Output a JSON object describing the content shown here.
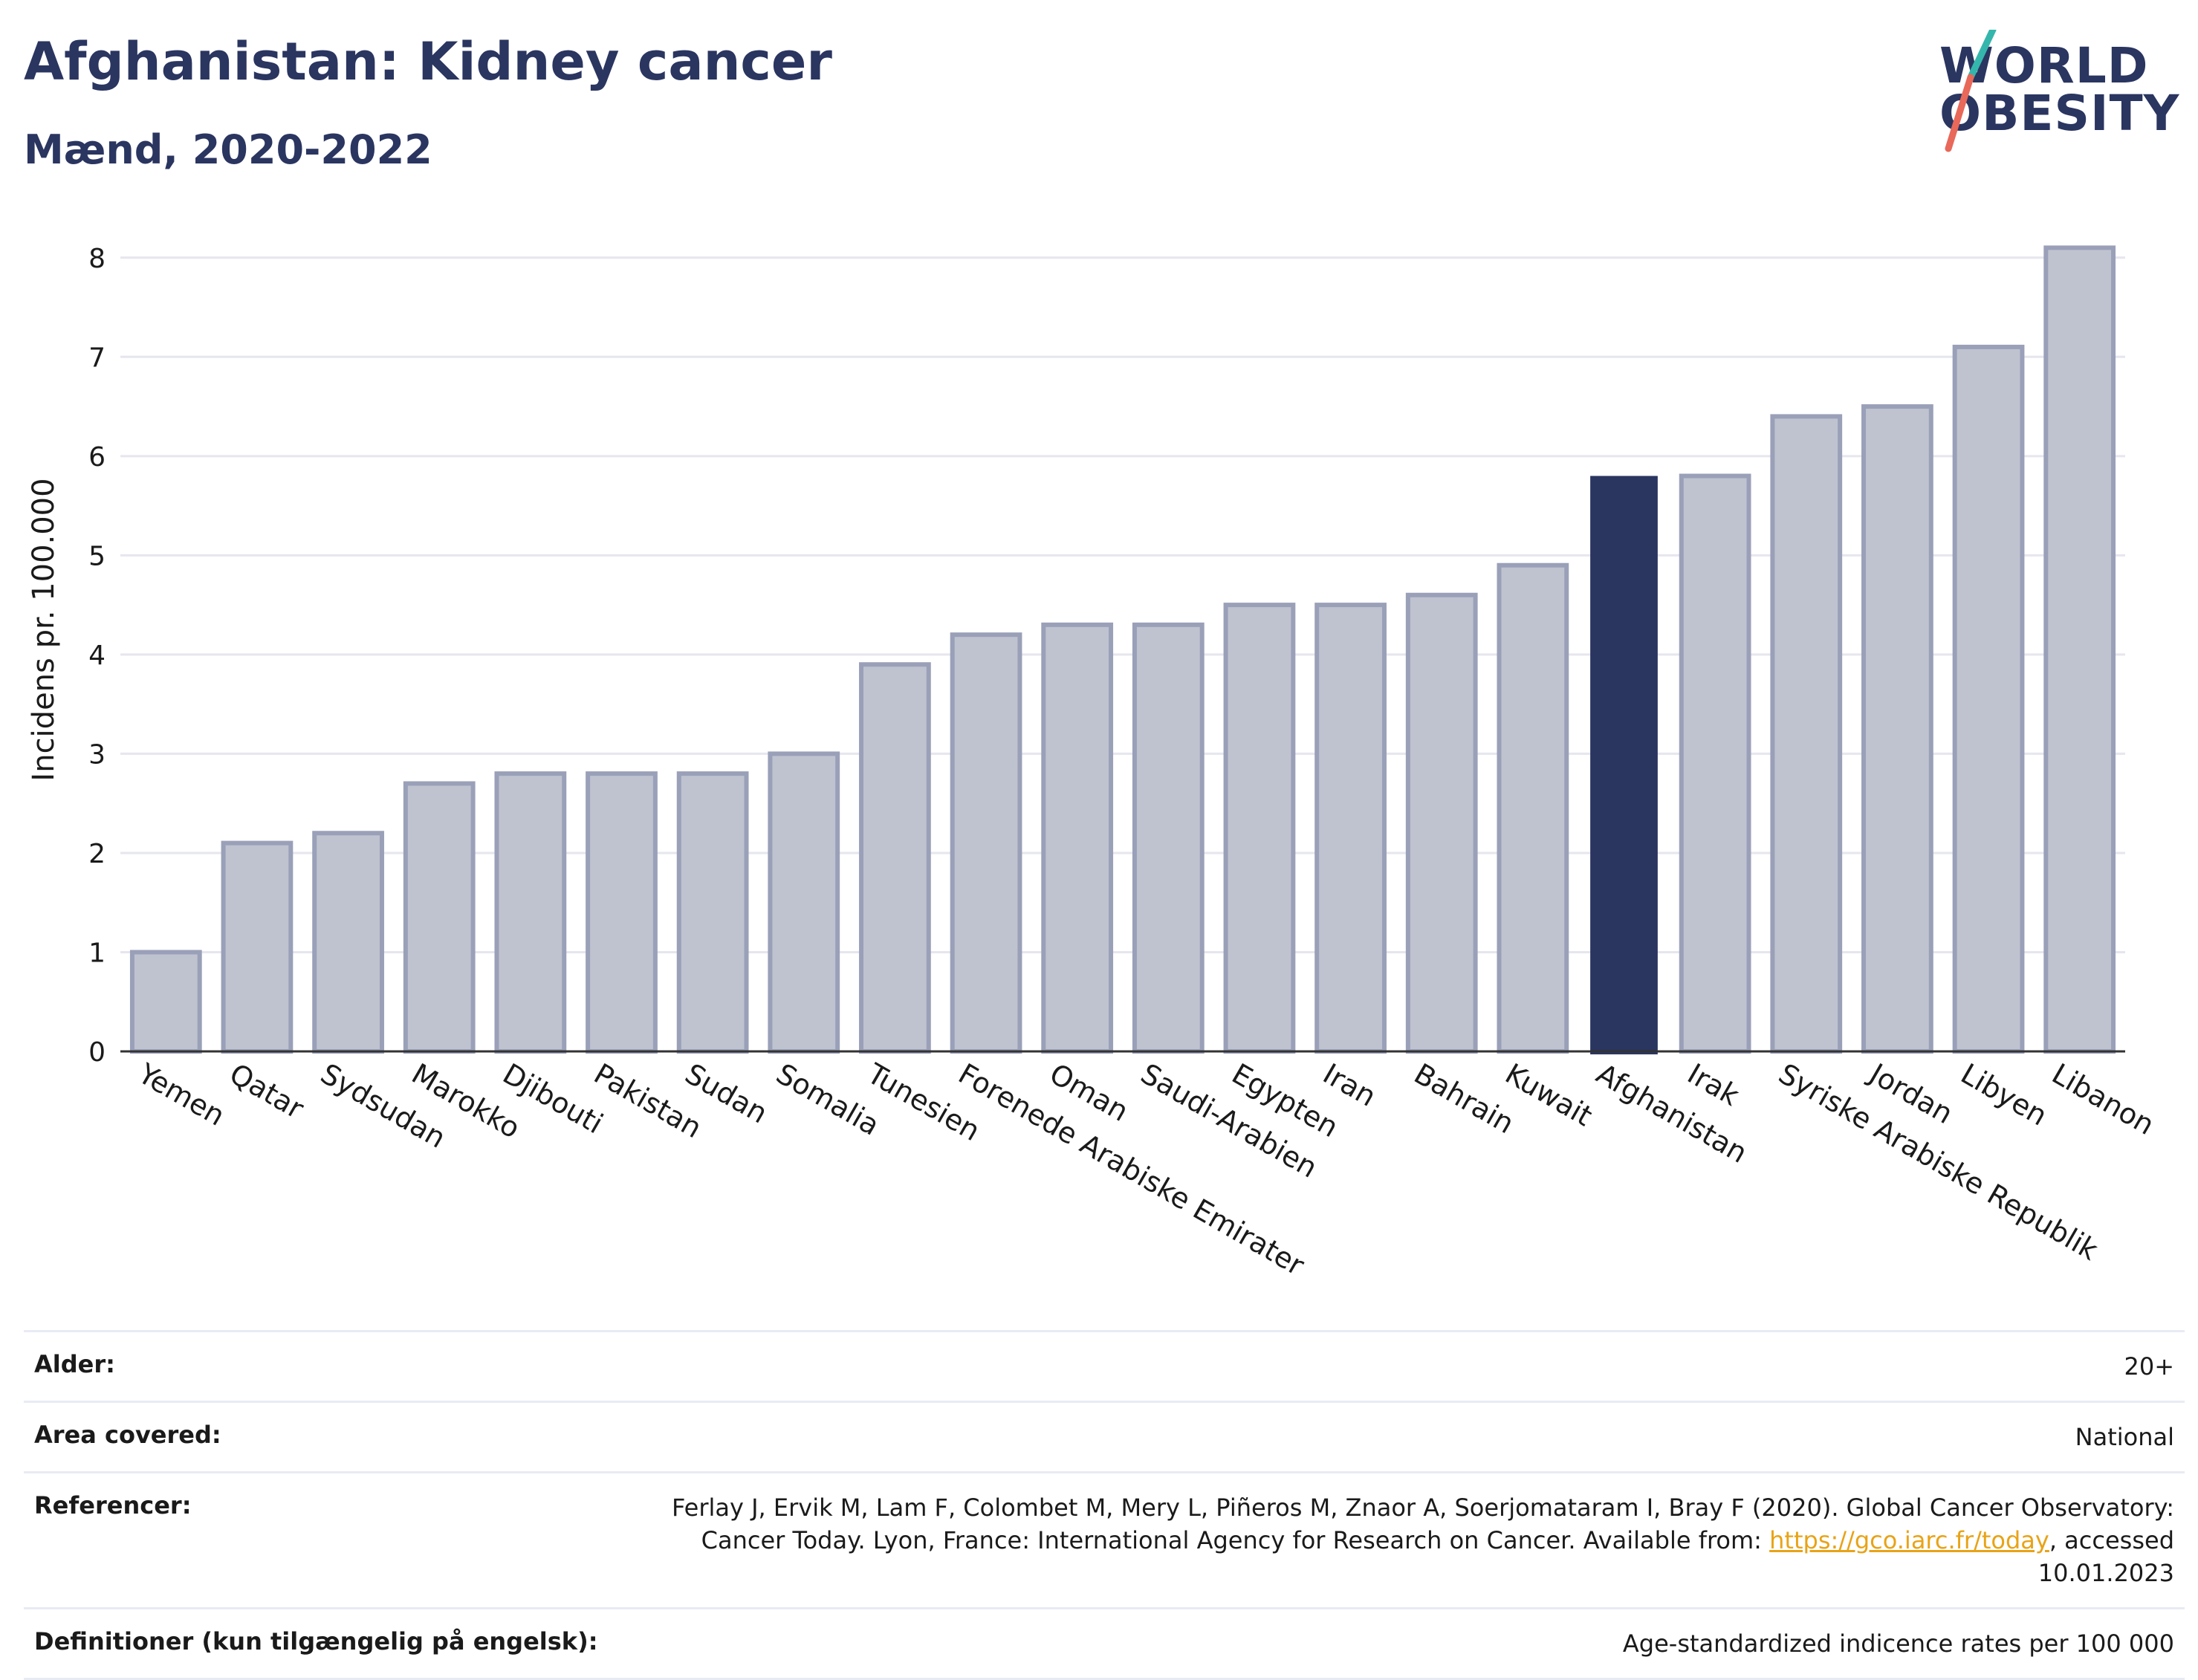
{
  "title": "Afghanistan: Kidney cancer",
  "subtitle": "Mænd, 2020-2022",
  "logo": {
    "line1": "WORLD",
    "line2": "OBESITY"
  },
  "colors": {
    "bar": "#bfc3d0",
    "bar_border": "#9aa0b8",
    "highlight": "#2a3560",
    "title": "#2a3560",
    "grid": "#e6e6ee",
    "link": "#e8a317"
  },
  "chart_data": {
    "type": "bar",
    "title": "Afghanistan: Kidney cancer",
    "ylabel": "Incidens pr. 100.000",
    "ylim": [
      0,
      8.5
    ],
    "yticks": [
      0,
      1,
      2,
      3,
      4,
      5,
      6,
      7,
      8
    ],
    "grid": true,
    "highlight": "Afghanistan",
    "categories": [
      "Yemen",
      "Qatar",
      "Sydsudan",
      "Marokko",
      "Djibouti",
      "Pakistan",
      "Sudan",
      "Somalia",
      "Tunesien",
      "Forenede Arabiske Emirater",
      "Oman",
      "Saudi-Arabien",
      "Egypten",
      "Iran",
      "Bahrain",
      "Kuwait",
      "Afghanistan",
      "Irak",
      "Syriske Arabiske Republik",
      "Jordan",
      "Libyen",
      "Libanon"
    ],
    "values": [
      1.0,
      2.1,
      2.2,
      2.7,
      2.8,
      2.8,
      2.8,
      3.0,
      3.9,
      4.2,
      4.3,
      4.3,
      4.5,
      4.5,
      4.6,
      4.9,
      5.8,
      5.8,
      6.4,
      6.5,
      7.1,
      8.1
    ]
  },
  "meta": [
    {
      "label": "Alder:",
      "value": "20+"
    },
    {
      "label": "Area covered:",
      "value": "National"
    },
    {
      "label": "Referencer:",
      "value_pre": "Ferlay J, Ervik M, Lam F, Colombet M, Mery L, Piñeros M, Znaor A, Soerjomataram I, Bray F (2020). Global Cancer Observatory: Cancer Today. Lyon, France: International Agency for Research on Cancer. Available from: ",
      "link": "https://gco.iarc.fr/today",
      "value_post": ", accessed 10.01.2023"
    },
    {
      "label": "Definitioner (kun tilgængelig på engelsk):",
      "value": "Age-standardized indicence rates per 100 000"
    }
  ]
}
